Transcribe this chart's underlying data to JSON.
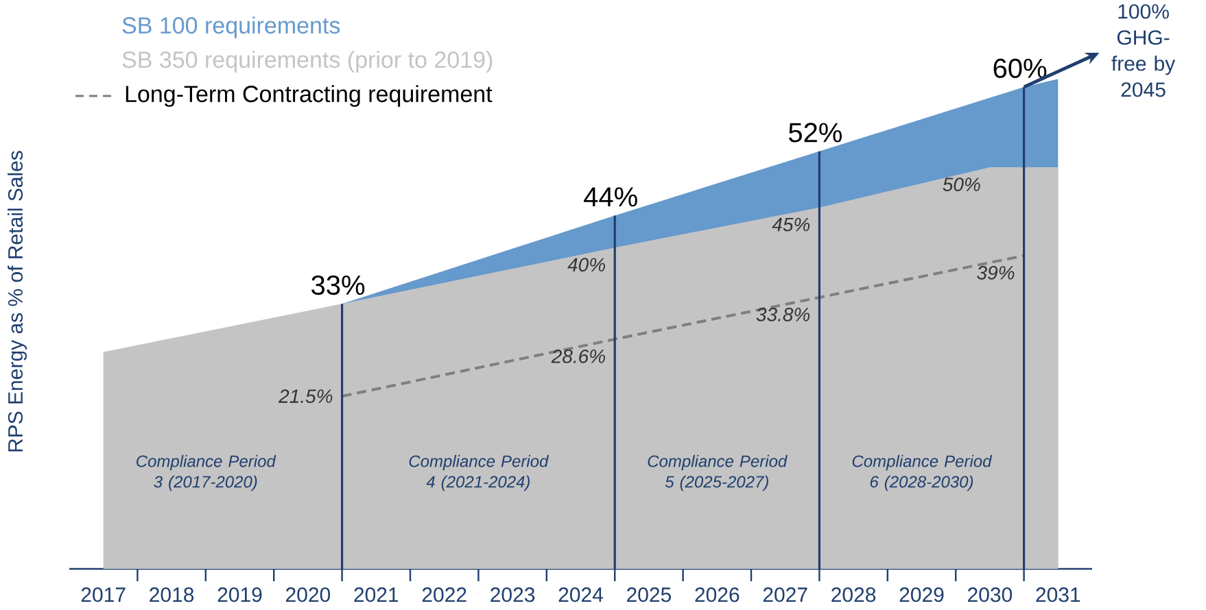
{
  "chart_data": {
    "type": "area",
    "ylabel": "RPS Energy as % of Retail Sales",
    "xlim": [
      2016.5,
      2031.5
    ],
    "xticks": [
      2017,
      2018,
      2019,
      2020,
      2021,
      2022,
      2023,
      2024,
      2025,
      2026,
      2027,
      2028,
      2029,
      2030,
      2031
    ],
    "tick_labels": "x",
    "legend": "top left",
    "series": [
      {
        "name": "SB 100 requirements",
        "color": "#6699CC",
        "x": [
          2020.5,
          2024.5,
          2027.5,
          2030.5,
          2031
        ],
        "values": [
          33,
          44,
          52,
          60,
          61
        ],
        "value_labels": [
          "33%",
          "44%",
          "52%",
          "60%",
          null
        ]
      },
      {
        "name": "SB 350 requirements (prior to 2019)",
        "color": "#C4C4C4",
        "x": [
          2017,
          2020.5,
          2024.5,
          2027.5,
          2030,
          2031
        ],
        "values": [
          27,
          33,
          40,
          45,
          50,
          50
        ],
        "value_labels": [
          null,
          null,
          "40%",
          "45%",
          "50%",
          null
        ]
      },
      {
        "name": "Long-Term Contracting requirement",
        "type": "line",
        "color": "#7F7F7F",
        "line_style": "dashed",
        "x": [
          2020.5,
          2024.5,
          2027.5,
          2030.5
        ],
        "values": [
          21.5,
          28.6,
          33.8,
          39
        ],
        "value_labels": [
          "21.5%",
          "28.6%",
          "33.8%",
          "39%"
        ]
      }
    ],
    "ref_lines": [
      {
        "axis": "x",
        "value": 2020.5,
        "color": "#1F3F6E"
      },
      {
        "axis": "x",
        "value": 2024.5,
        "color": "#1F3F6E"
      },
      {
        "axis": "x",
        "value": 2027.5,
        "color": "#1F3F6E"
      },
      {
        "axis": "x",
        "value": 2030.5,
        "color": "#1F3F6E"
      }
    ],
    "annotations": [
      "Compliance Period 3 (2017-2020)",
      "Compliance Period 4 (2021-2024)",
      "Compliance Period 5 (2025-2027)",
      "Compliance Period 6 (2028-2030)",
      "100% GHG-free by 2045"
    ]
  }
}
